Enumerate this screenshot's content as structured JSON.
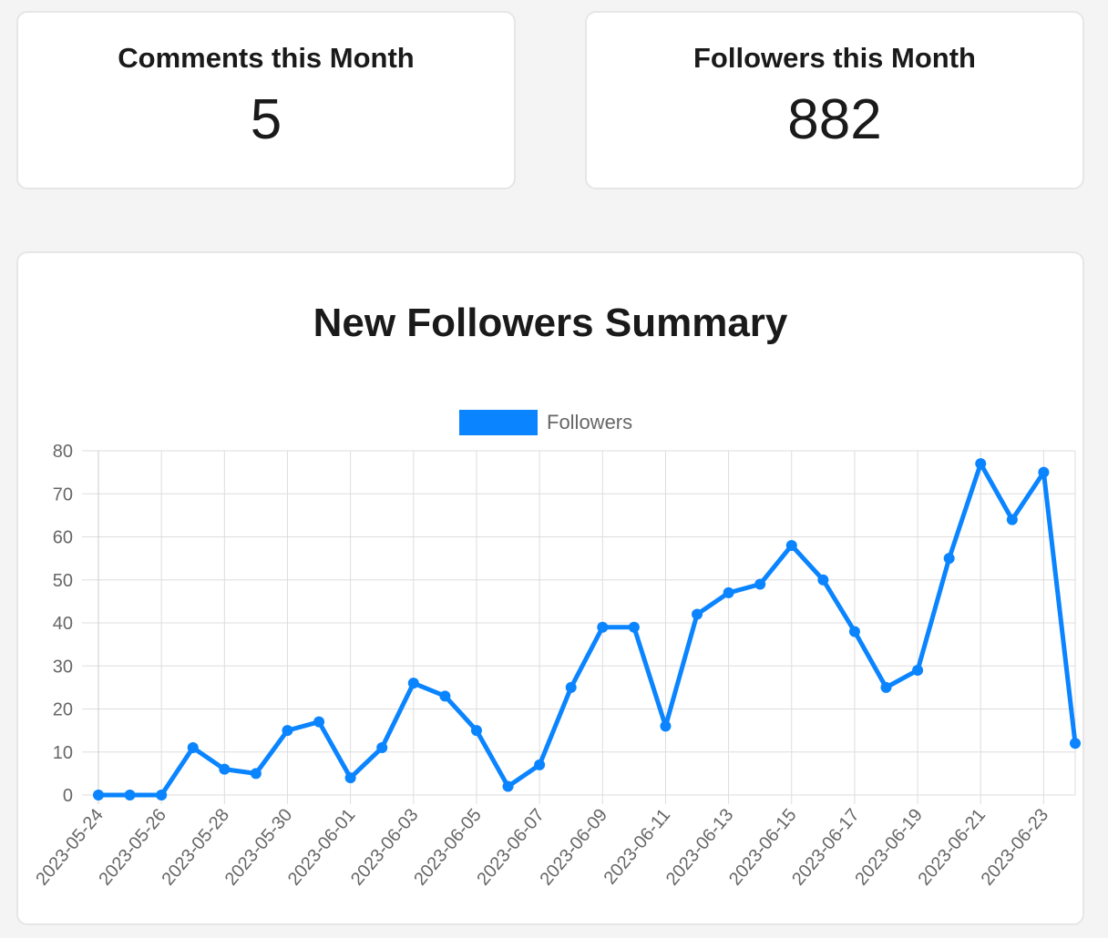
{
  "stats": {
    "comments": {
      "label": "Comments this Month",
      "value": "5"
    },
    "followers": {
      "label": "Followers this Month",
      "value": "882"
    }
  },
  "chart_data": {
    "type": "line",
    "title": "New Followers Summary",
    "xlabel": "",
    "ylabel": "",
    "ylim": [
      0,
      80
    ],
    "y_ticks": [
      0,
      10,
      20,
      30,
      40,
      50,
      60,
      70,
      80
    ],
    "grid": true,
    "legend_position": "top-center",
    "x": [
      "2023-05-24",
      "2023-05-25",
      "2023-05-26",
      "2023-05-27",
      "2023-05-28",
      "2023-05-29",
      "2023-05-30",
      "2023-05-31",
      "2023-06-01",
      "2023-06-02",
      "2023-06-03",
      "2023-06-04",
      "2023-06-05",
      "2023-06-06",
      "2023-06-07",
      "2023-06-08",
      "2023-06-09",
      "2023-06-10",
      "2023-06-11",
      "2023-06-12",
      "2023-06-13",
      "2023-06-14",
      "2023-06-15",
      "2023-06-16",
      "2023-06-17",
      "2023-06-18",
      "2023-06-19",
      "2023-06-20",
      "2023-06-21",
      "2023-06-22",
      "2023-06-23",
      "2023-06-24"
    ],
    "x_tick_labels": [
      "2023-05-24",
      "2023-05-26",
      "2023-05-28",
      "2023-05-30",
      "2023-06-01",
      "2023-06-03",
      "2023-06-05",
      "2023-06-07",
      "2023-06-09",
      "2023-06-11",
      "2023-06-13",
      "2023-06-15",
      "2023-06-17",
      "2023-06-19",
      "2023-06-21",
      "2023-06-23"
    ],
    "series": [
      {
        "name": "Followers",
        "color": "#0a84ff",
        "values": [
          0,
          0,
          0,
          11,
          6,
          5,
          15,
          17,
          4,
          11,
          26,
          23,
          15,
          2,
          7,
          25,
          39,
          39,
          16,
          42,
          47,
          49,
          58,
          50,
          38,
          25,
          29,
          55,
          77,
          64,
          75,
          12
        ]
      }
    ]
  }
}
